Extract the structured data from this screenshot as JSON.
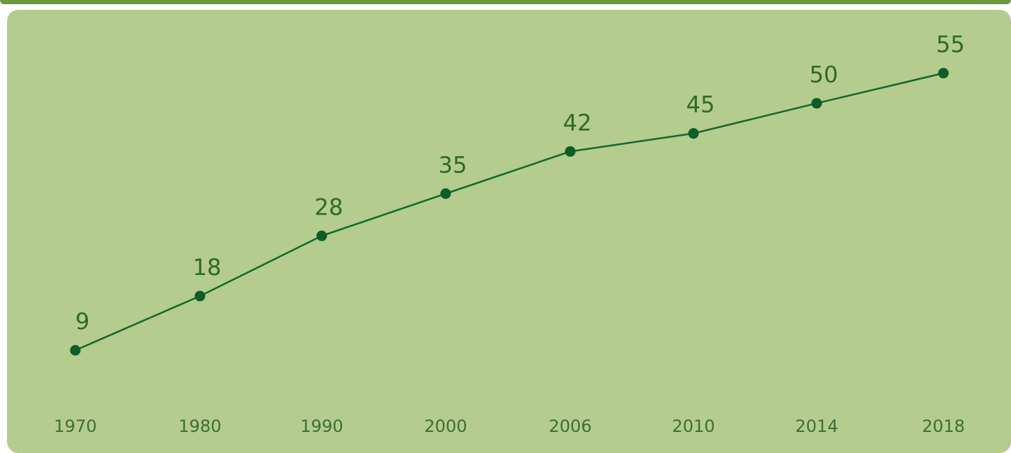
{
  "colors": {
    "panel_background": "#b4cc8e",
    "top_strip": "#6a9a3a",
    "line": "#0f6a2a",
    "marker": "#0b5e24",
    "value_label": "#2f6a2a",
    "tick_label": "#3f6e35"
  },
  "chart_data": {
    "type": "line",
    "title": "",
    "xlabel": "",
    "ylabel": "",
    "categories": [
      "1970",
      "1980",
      "1990",
      "2000",
      "2006",
      "2010",
      "2014",
      "2018"
    ],
    "values": [
      9,
      18,
      28,
      35,
      42,
      45,
      50,
      55
    ],
    "ylim": [
      0,
      60
    ],
    "grid": false,
    "legend": "none",
    "data_labels": true
  }
}
